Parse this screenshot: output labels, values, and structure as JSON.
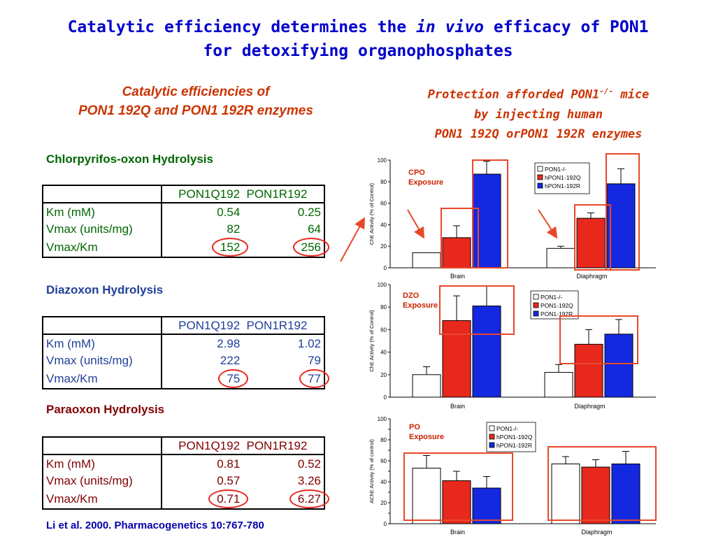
{
  "title": {
    "line1_a": "Catalytic efficiency determines the ",
    "line1_b": "in vivo",
    "line1_c": " efficacy of PON1",
    "line2": "for detoxifying organophosphates"
  },
  "left_subtitle": {
    "line1": "Catalytic efficiencies of",
    "line2": "PON1 192Q and PON1 192R enzymes"
  },
  "right_subtitle": {
    "line1_a": "Protection afforded PON1",
    "line1_sup": "-/-",
    "line1_b": " mice",
    "line2": "by injecting human",
    "line3": "PON1 192Q orPON1 192R enzymes"
  },
  "tables": [
    {
      "heading": "Chlorpyrifos-oxon Hydrolysis",
      "header_q": "PON1Q192",
      "header_r": "PON1R192",
      "rows": [
        {
          "label": "Km (mM)",
          "q": "0.54",
          "r": "0.25"
        },
        {
          "label": "Vmax (units/mg)",
          "q": "82",
          "r": "64"
        },
        {
          "label": "Vmax/Km",
          "q": "152",
          "r": "256"
        }
      ]
    },
    {
      "heading": "Diazoxon Hydrolysis",
      "header_q": "PON1Q192",
      "header_r": "PON1R192",
      "rows": [
        {
          "label": "Km (mM)",
          "q": "2.98",
          "r": "1.02"
        },
        {
          "label": "Vmax (units/mg)",
          "q": "222",
          "r": "79"
        },
        {
          "label": "Vmax/Km",
          "q": "75",
          "r": "77"
        }
      ]
    },
    {
      "heading": "Paraoxon Hydrolysis",
      "header_q": "PON1Q192",
      "header_r": "PON1R192",
      "rows": [
        {
          "label": "Km (mM)",
          "q": "0.81",
          "r": "0.52"
        },
        {
          "label": "Vmax (units/mg)",
          "q": "0.57",
          "r": "3.26"
        },
        {
          "label": "Vmax/Km",
          "q": "0.71",
          "r": "6.27"
        }
      ]
    }
  ],
  "citation": "Li et al. 2000.  Pharmacogenetics 10:767-780",
  "colors": {
    "control": "#ffffff",
    "q192": "#e8281c",
    "r192": "#1428e0",
    "highlight": "#e8482a"
  },
  "chart_data": [
    {
      "type": "bar",
      "annotation": [
        "CPO",
        "Exposure"
      ],
      "ylabel": "ChE Activity (% of Control)",
      "ylim": [
        0,
        100
      ],
      "yticks": [
        0,
        20,
        40,
        60,
        80,
        100
      ],
      "legend_position": "top-right",
      "categories": [
        "Brain",
        "Diaphragm"
      ],
      "series": [
        {
          "name": "PON1-/-",
          "values": [
            14,
            18
          ],
          "errors": [
            0,
            2
          ]
        },
        {
          "name": "hPON1-192Q",
          "values": [
            28,
            46
          ],
          "errors": [
            11,
            5
          ]
        },
        {
          "name": "hPON1-192R",
          "values": [
            87,
            78
          ],
          "errors": [
            12,
            14
          ]
        }
      ]
    },
    {
      "type": "bar",
      "annotation": [
        "DZO",
        "Exposure"
      ],
      "ylabel": "ChE Activity (% of Control)",
      "ylim": [
        0,
        100
      ],
      "yticks": [
        0,
        20,
        40,
        60,
        80,
        100
      ],
      "legend_position": "top-right",
      "categories": [
        "Brain",
        "Diaphragm"
      ],
      "series": [
        {
          "name": "PON1-/-",
          "values": [
            20,
            22
          ],
          "errors": [
            7,
            7
          ]
        },
        {
          "name": "PON1-192Q",
          "values": [
            68,
            47
          ],
          "errors": [
            22,
            13
          ]
        },
        {
          "name": "PON1-192R",
          "values": [
            81,
            56
          ],
          "errors": [
            18,
            13
          ]
        }
      ]
    },
    {
      "type": "bar",
      "annotation": [
        "PO",
        "Exposure"
      ],
      "ylabel": "AChE Activity (% of control)",
      "ylim": [
        0,
        100
      ],
      "yticks": [
        0,
        10,
        20,
        30,
        40,
        50,
        60,
        70,
        80,
        90,
        100
      ],
      "ytick_labels": [
        "0",
        "",
        "20",
        "",
        "40",
        "",
        "60",
        "",
        "80",
        "",
        "100"
      ],
      "legend_position": "top-right",
      "categories": [
        "Brain",
        "Diaphragm"
      ],
      "series": [
        {
          "name": "PON1-/-",
          "values": [
            53,
            57
          ],
          "errors": [
            12,
            7
          ]
        },
        {
          "name": "hPON1-192Q",
          "values": [
            41,
            54
          ],
          "errors": [
            9,
            7
          ]
        },
        {
          "name": "hPON1-192R",
          "values": [
            34,
            57
          ],
          "errors": [
            11,
            12
          ]
        }
      ]
    }
  ]
}
